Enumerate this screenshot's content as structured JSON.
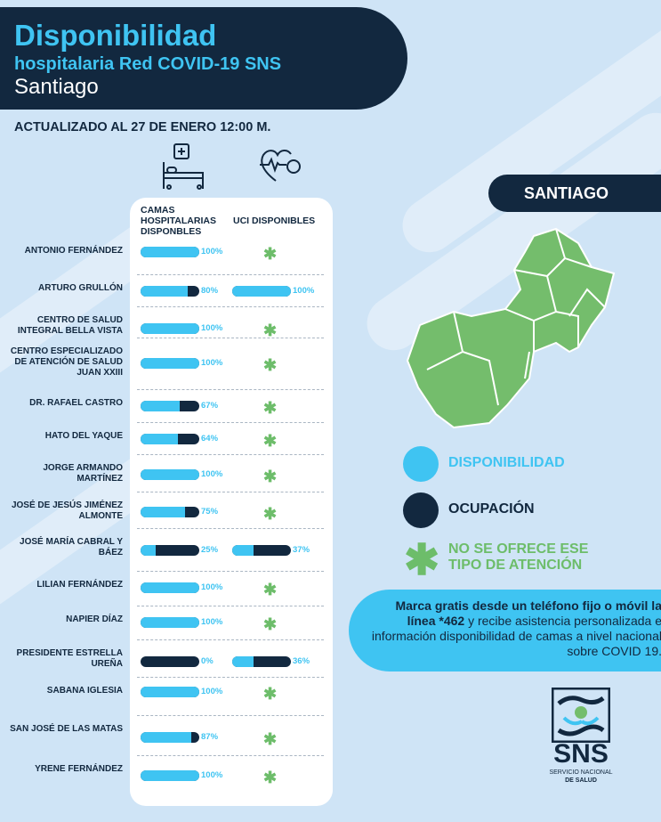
{
  "header": {
    "title": "Disponibilidad",
    "subtitle": "hospitalaria Red COVID-19 SNS",
    "region": "Santiago"
  },
  "updated": "ACTUALIZADO AL 27 DE ENERO  12:00 M.",
  "columns": {
    "beds": "CAMAS HOSPITALARIAS DISPONBLES",
    "uci": "UCI DISPONIBLES"
  },
  "hospitals": [
    {
      "name": "ANTONIO FERNÁNDEZ",
      "beds": 100,
      "beds_label": "100%",
      "uci": null,
      "uci_label": ""
    },
    {
      "name": "ARTURO GRULLÓN",
      "beds": 80,
      "beds_label": "80%",
      "uci": 100,
      "uci_label": "100%"
    },
    {
      "name": "CENTRO DE SALUD INTEGRAL BELLA VISTA",
      "beds": 100,
      "beds_label": "100%",
      "uci": null,
      "uci_label": ""
    },
    {
      "name": "CENTRO ESPECIALIZADO DE ATENCIÓN DE SALUD JUAN XXIII",
      "beds": 100,
      "beds_label": "100%",
      "uci": null,
      "uci_label": ""
    },
    {
      "name": "DR. RAFAEL CASTRO",
      "beds": 67,
      "beds_label": "67%",
      "uci": null,
      "uci_label": ""
    },
    {
      "name": "HATO DEL YAQUE",
      "beds": 64,
      "beds_label": "64%",
      "uci": null,
      "uci_label": ""
    },
    {
      "name": "JORGE ARMANDO MARTÍNEZ",
      "beds": 100,
      "beds_label": "100%",
      "uci": null,
      "uci_label": ""
    },
    {
      "name": "JOSÉ DE JESÚS JIMÉNEZ ALMONTE",
      "beds": 75,
      "beds_label": "75%",
      "uci": null,
      "uci_label": ""
    },
    {
      "name": "JOSÉ MARÍA CABRAL Y BÁEZ",
      "beds": 25,
      "beds_label": "25%",
      "uci": 37,
      "uci_label": "37%"
    },
    {
      "name": "LILIAN FERNÁNDEZ",
      "beds": 100,
      "beds_label": "100%",
      "uci": null,
      "uci_label": ""
    },
    {
      "name": "NAPIER DÍAZ",
      "beds": 100,
      "beds_label": "100%",
      "uci": null,
      "uci_label": ""
    },
    {
      "name": "PRESIDENTE ESTRELLA UREÑA",
      "beds": 0,
      "beds_label": "0%",
      "uci": 36,
      "uci_label": "36%"
    },
    {
      "name": "SABANA IGLESIA",
      "beds": 100,
      "beds_label": "100%",
      "uci": null,
      "uci_label": ""
    },
    {
      "name": "SAN JOSÉ DE LAS MATAS",
      "beds": 87,
      "beds_label": "87%",
      "uci": null,
      "uci_label": ""
    },
    {
      "name": "YRENE FERNÁNDEZ",
      "beds": 100,
      "beds_label": "100%",
      "uci": null,
      "uci_label": ""
    }
  ],
  "map": {
    "label": "SANTIAGO"
  },
  "legend": {
    "available": "DISPONIBILIDAD",
    "occupied": "OCUPACIÓN",
    "not_offered": "NO SE OFRECE ESE TIPO DE ATENCIÓN"
  },
  "info": {
    "bold": "Marca gratis desde un teléfono fijo o móvil la línea *462",
    "rest": " y recibe asistencia personalizada e información disponibilidad de camas a nivel nacional sobre COVID 19."
  },
  "logo": {
    "abbr": "SNS",
    "line1": "SERVICIO NACIONAL",
    "line2": "DE SALUD"
  },
  "colors": {
    "available": "#3fc4f2",
    "occupied": "#12283f",
    "not_offered": "#6dbd6a",
    "background": "#cfe4f6"
  },
  "icons": [
    "hospital-bed-icon",
    "heart-monitor-icon",
    "asterisk-icon",
    "phone-hands-logo-icon"
  ]
}
